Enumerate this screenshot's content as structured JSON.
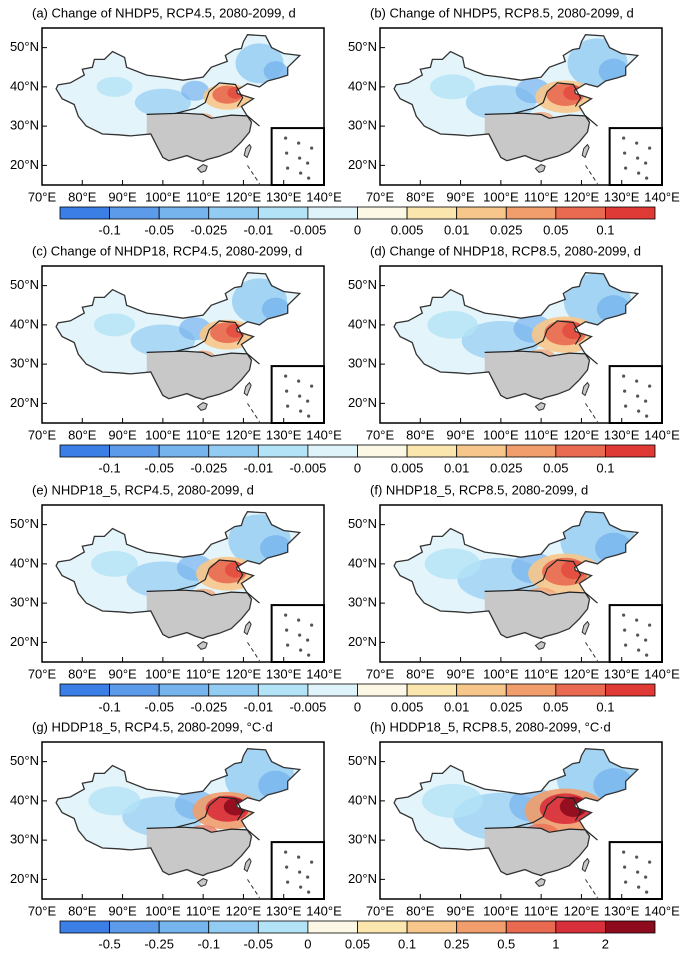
{
  "map_axes": {
    "lon_labels": [
      "70°E",
      "80°E",
      "90°E",
      "100°E",
      "110°E",
      "120°E",
      "130°E",
      "140°E"
    ],
    "lat_labels": [
      "50°N",
      "40°N",
      "30°N",
      "20°N"
    ]
  },
  "rows": [
    {
      "panels": [
        {
          "title": "(a) Change of NHDP5, RCP4.5, 2080-2099, d"
        },
        {
          "title": "(b) Change of NHDP5, RCP8.5, 2080-2099, d"
        }
      ],
      "colorbar": {
        "labels": [
          "-0.1",
          "-0.05",
          "-0.025",
          "-0.01",
          "-0.005",
          "0",
          "0.005",
          "0.01",
          "0.025",
          "0.05",
          "0.1"
        ],
        "colors": [
          "#3b7ee6",
          "#5b9be9",
          "#76b4ee",
          "#93ccf2",
          "#b3e3f6",
          "#def4fa",
          "#fdf8e6",
          "#fbe6ad",
          "#f7c68a",
          "#f19d6c",
          "#e96a50",
          "#e03a36"
        ]
      }
    },
    {
      "panels": [
        {
          "title": "(c) Change of NHDP18, RCP4.5, 2080-2099, d"
        },
        {
          "title": "(d) Change of NHDP18, RCP8.5, 2080-2099, d"
        }
      ],
      "colorbar": {
        "labels": [
          "-0.1",
          "-0.05",
          "-0.025",
          "-0.01",
          "-0.005",
          "0",
          "0.005",
          "0.01",
          "0.025",
          "0.05",
          "0.1"
        ],
        "colors": [
          "#3b7ee6",
          "#5b9be9",
          "#76b4ee",
          "#93ccf2",
          "#b3e3f6",
          "#def4fa",
          "#fdf8e6",
          "#fbe6ad",
          "#f7c68a",
          "#f19d6c",
          "#e96a50",
          "#e03a36"
        ]
      }
    },
    {
      "panels": [
        {
          "title": "(e) NHDP18_5, RCP4.5, 2080-2099, d"
        },
        {
          "title": "(f) NHDP18_5, RCP8.5, 2080-2099, d"
        }
      ],
      "colorbar": {
        "labels": [
          "-0.1",
          "-0.05",
          "-0.025",
          "-0.01",
          "-0.005",
          "0",
          "0.005",
          "0.01",
          "0.025",
          "0.05",
          "0.1"
        ],
        "colors": [
          "#3b7ee6",
          "#5b9be9",
          "#76b4ee",
          "#93ccf2",
          "#b3e3f6",
          "#def4fa",
          "#fdf8e6",
          "#fbe6ad",
          "#f7c68a",
          "#f19d6c",
          "#e96a50",
          "#e03a36"
        ]
      }
    },
    {
      "panels": [
        {
          "title": "(g) HDDP18_5, RCP4.5, 2080-2099, °C·d"
        },
        {
          "title": "(h) HDDP18_5, RCP8.5, 2080-2099, °C·d"
        }
      ],
      "colorbar": {
        "labels": [
          "-0.5",
          "-0.25",
          "-0.1",
          "-0.05",
          "0",
          "0.05",
          "0.1",
          "0.25",
          "0.5",
          "1",
          "2"
        ],
        "colors": [
          "#3b7ee6",
          "#5b9be9",
          "#76b4ee",
          "#93ccf2",
          "#b3e3f6",
          "#fdf8e6",
          "#fbe6ad",
          "#f7c68a",
          "#f19d6c",
          "#e96a50",
          "#d8303a",
          "#8e0b1e"
        ]
      }
    }
  ]
}
